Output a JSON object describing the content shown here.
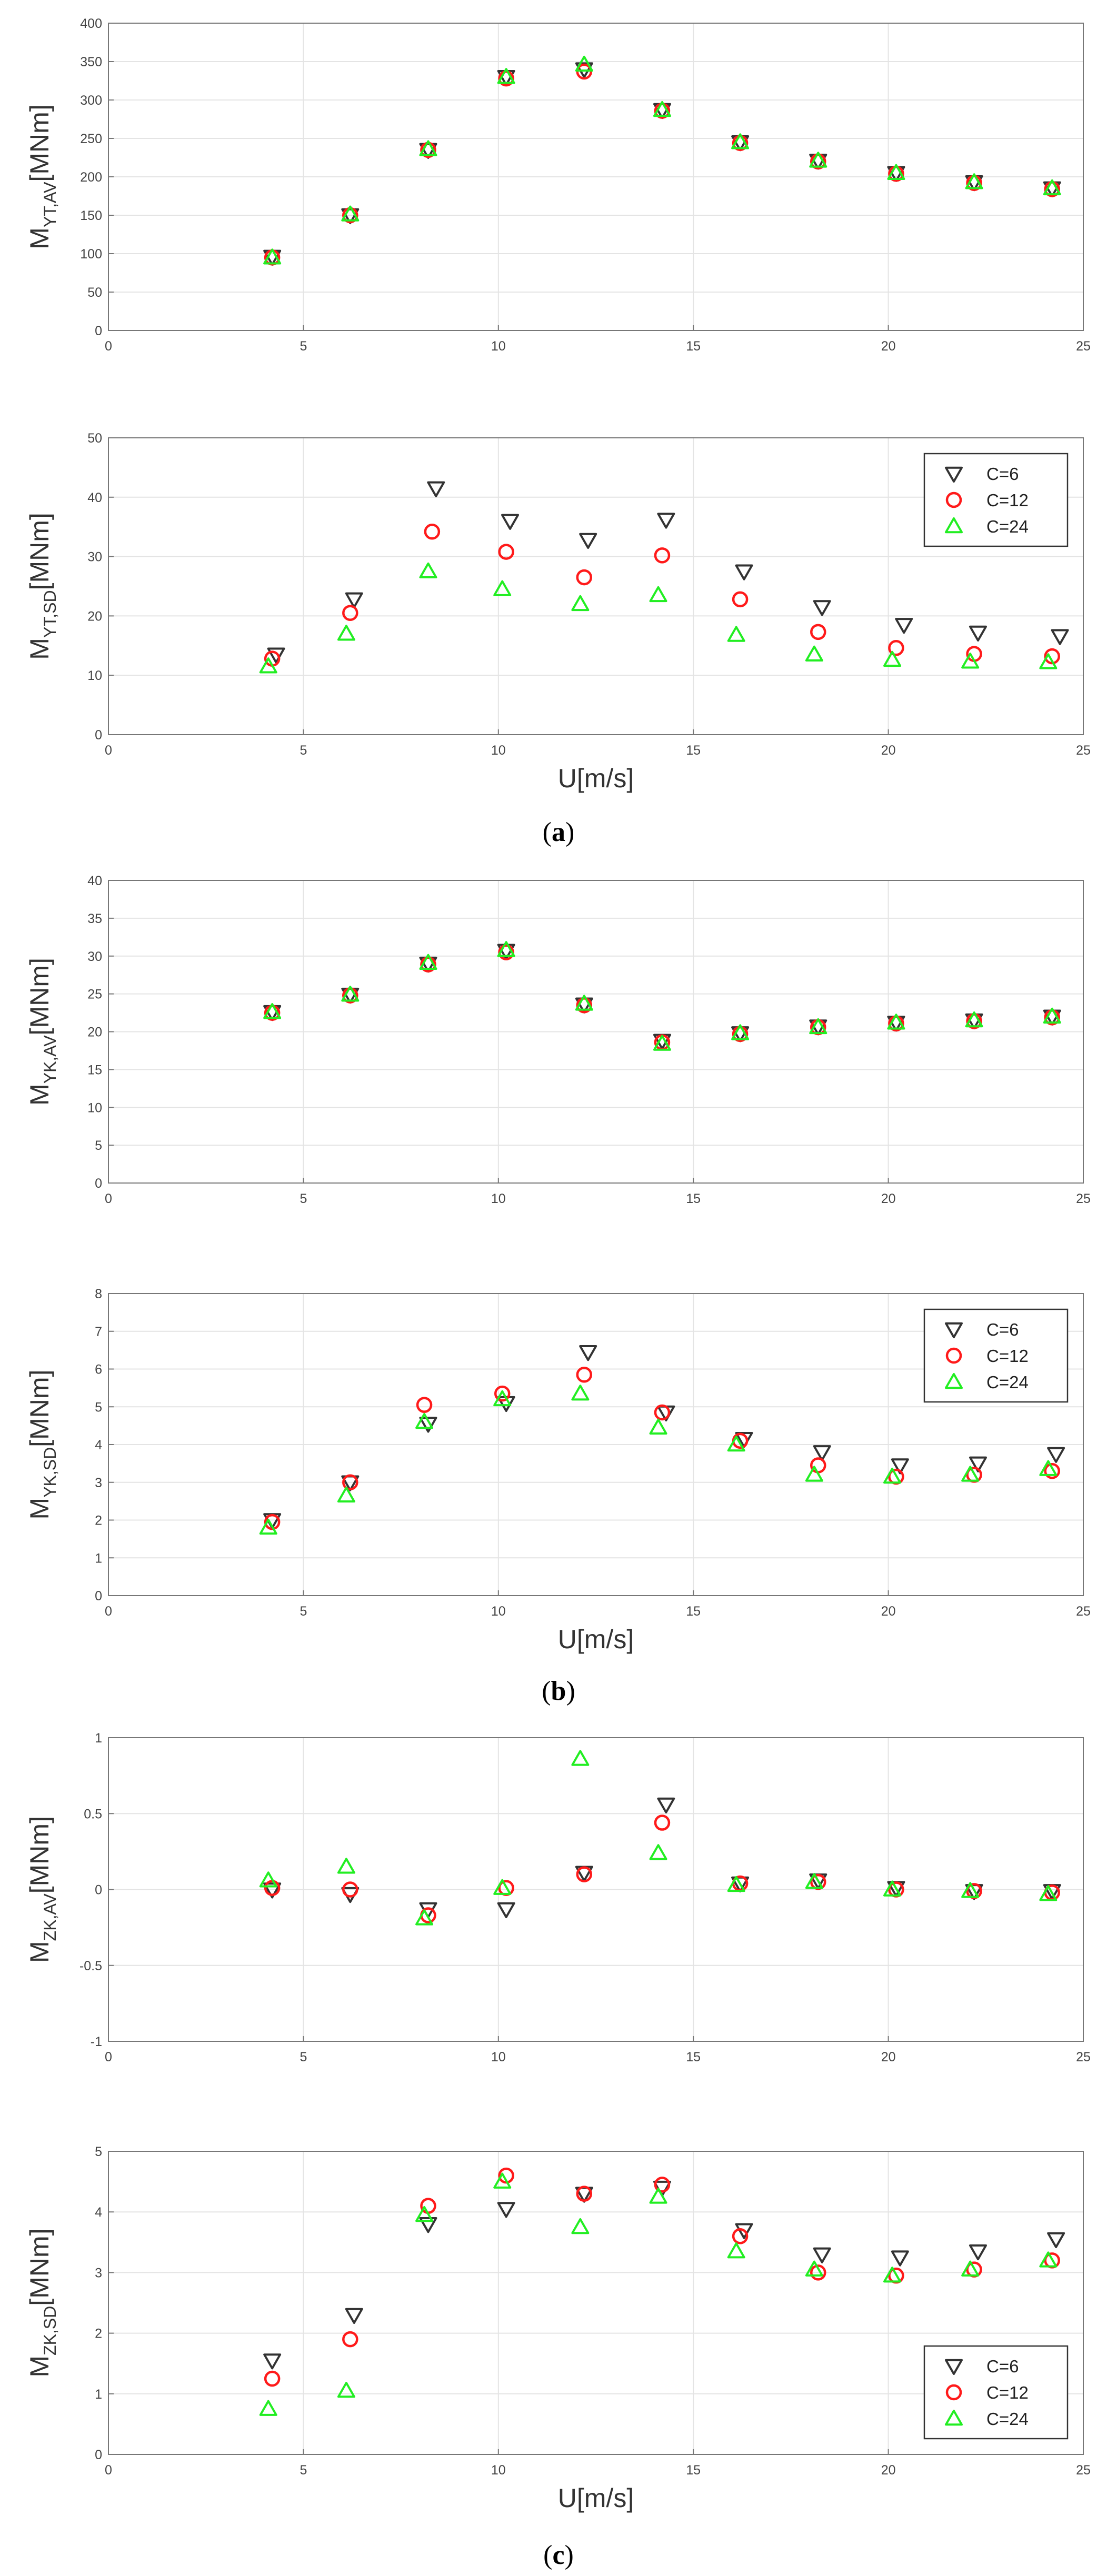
{
  "figure": {
    "captions": {
      "a": {
        "open": "(",
        "letter": "a",
        "close": ")"
      },
      "b": {
        "open": "(",
        "letter": "b",
        "close": ")"
      },
      "c": {
        "open": "(",
        "letter": "c",
        "close": ")"
      }
    }
  },
  "colors": {
    "C6": "#333333",
    "C12": "#ff1a1a",
    "C24": "#22ee22",
    "grid": "#e4e4e4",
    "axis": "#777777"
  },
  "chart_data": [
    {
      "id": "MYT_AV",
      "type": "scatter",
      "ylabel": {
        "main": "M",
        "sub": "YT,AV",
        "unit": "[MNm]"
      },
      "xlabel": "",
      "xlim": [
        0,
        25
      ],
      "ylim": [
        0,
        400
      ],
      "xticks": [
        0,
        5,
        10,
        15,
        20,
        25
      ],
      "yticks": [
        0,
        50,
        100,
        150,
        200,
        250,
        300,
        350,
        400
      ],
      "grid": true,
      "legend": null,
      "series": [
        {
          "name": "C=6",
          "marker": "triangle-down",
          "color": "#333333",
          "x": [
            4.2,
            6.2,
            8.2,
            10.2,
            12.2,
            14.2,
            16.2,
            18.2,
            20.2,
            22.2,
            24.2
          ],
          "y": [
            96,
            150,
            235,
            330,
            340,
            287,
            245,
            221,
            205,
            193,
            185
          ]
        },
        {
          "name": "C=12",
          "marker": "circle",
          "color": "#ff1a1a",
          "x": [
            4.2,
            6.2,
            8.2,
            10.2,
            12.2,
            14.2,
            16.2,
            18.2,
            20.2,
            22.2,
            24.2
          ],
          "y": [
            95,
            150,
            235,
            328,
            337,
            286,
            244,
            220,
            204,
            192,
            184
          ]
        },
        {
          "name": "C=24",
          "marker": "triangle-up",
          "color": "#22ee22",
          "x": [
            4.2,
            6.2,
            8.2,
            10.2,
            12.2,
            14.2,
            16.2,
            18.2,
            20.2,
            22.2,
            24.2
          ],
          "y": [
            95,
            151,
            236,
            330,
            346,
            287,
            245,
            221,
            205,
            193,
            185
          ]
        }
      ]
    },
    {
      "id": "MYT_SD",
      "type": "scatter",
      "ylabel": {
        "main": "M",
        "sub": "YT,SD",
        "unit": "[MNm]"
      },
      "xlabel": "U[m/s]",
      "xlim": [
        0,
        25
      ],
      "ylim": [
        0,
        50
      ],
      "xticks": [
        0,
        5,
        10,
        15,
        20,
        25
      ],
      "yticks": [
        0,
        10,
        20,
        30,
        40,
        50
      ],
      "grid": true,
      "legend": "top-right",
      "series": [
        {
          "name": "C=6",
          "marker": "triangle-down",
          "color": "#333333",
          "x": [
            4.3,
            6.3,
            8.4,
            10.3,
            12.3,
            14.3,
            16.3,
            18.3,
            20.4,
            22.3,
            24.4
          ],
          "y": [
            13.5,
            22.8,
            41.5,
            36,
            32.8,
            36.2,
            27.5,
            21.5,
            18.5,
            17.2,
            16.6
          ]
        },
        {
          "name": "C=12",
          "marker": "circle",
          "color": "#ff1a1a",
          "x": [
            4.2,
            6.2,
            8.3,
            10.2,
            12.2,
            14.2,
            16.2,
            18.2,
            20.2,
            22.2,
            24.2
          ],
          "y": [
            12.8,
            20.5,
            34.2,
            30.8,
            26.5,
            30.2,
            22.8,
            17.3,
            14.6,
            13.6,
            13.2
          ]
        },
        {
          "name": "C=24",
          "marker": "triangle-up",
          "color": "#22ee22",
          "x": [
            4.1,
            6.1,
            8.2,
            10.1,
            12.1,
            14.1,
            16.1,
            18.1,
            20.1,
            22.1,
            24.1
          ],
          "y": [
            11.5,
            17,
            27.5,
            24.5,
            22,
            23.5,
            16.8,
            13.5,
            12.6,
            12.3,
            12.2
          ]
        }
      ]
    },
    {
      "id": "MYK_AV",
      "type": "scatter",
      "ylabel": {
        "main": "M",
        "sub": "YK,AV",
        "unit": "[MNm]"
      },
      "xlabel": "",
      "xlim": [
        0,
        25
      ],
      "ylim": [
        0,
        40
      ],
      "xticks": [
        0,
        5,
        10,
        15,
        20,
        25
      ],
      "yticks": [
        0,
        5,
        10,
        15,
        20,
        25,
        30,
        35,
        40
      ],
      "grid": true,
      "legend": null,
      "series": [
        {
          "name": "C=6",
          "marker": "triangle-down",
          "color": "#333333",
          "x": [
            4.2,
            6.2,
            8.2,
            10.2,
            12.2,
            14.2,
            16.2,
            18.2,
            20.2,
            22.2,
            24.2
          ],
          "y": [
            22.6,
            24.9,
            29,
            30.7,
            23.6,
            18.8,
            19.8,
            20.7,
            21.2,
            21.5,
            22
          ]
        },
        {
          "name": "C=12",
          "marker": "circle",
          "color": "#ff1a1a",
          "x": [
            4.2,
            6.2,
            8.2,
            10.2,
            12.2,
            14.2,
            16.2,
            18.2,
            20.2,
            22.2,
            24.2
          ],
          "y": [
            22.5,
            24.8,
            28.9,
            30.5,
            23.5,
            18.6,
            19.7,
            20.6,
            21.1,
            21.4,
            21.9
          ]
        },
        {
          "name": "C=24",
          "marker": "triangle-up",
          "color": "#22ee22",
          "x": [
            4.2,
            6.2,
            8.2,
            10.2,
            12.2,
            14.2,
            16.2,
            18.2,
            20.2,
            22.2,
            24.2
          ],
          "y": [
            22.6,
            24.9,
            29.1,
            30.8,
            23.7,
            18.4,
            19.8,
            20.6,
            21.2,
            21.5,
            22
          ]
        }
      ]
    },
    {
      "id": "MYK_SD",
      "type": "scatter",
      "ylabel": {
        "main": "M",
        "sub": "YK,SD",
        "unit": "[MNm]"
      },
      "xlabel": "U[m/s]",
      "xlim": [
        0,
        25
      ],
      "ylim": [
        0,
        8
      ],
      "xticks": [
        0,
        5,
        10,
        15,
        20,
        25
      ],
      "yticks": [
        0,
        1,
        2,
        3,
        4,
        5,
        6,
        7,
        8
      ],
      "grid": true,
      "legend": "top-right",
      "series": [
        {
          "name": "C=6",
          "marker": "triangle-down",
          "color": "#333333",
          "x": [
            4.2,
            6.2,
            8.2,
            10.2,
            12.3,
            14.3,
            16.3,
            18.3,
            20.3,
            22.3,
            24.3
          ],
          "y": [
            2,
            3,
            4.55,
            5.1,
            6.45,
            4.85,
            4.15,
            3.8,
            3.45,
            3.5,
            3.75
          ]
        },
        {
          "name": "C=12",
          "marker": "circle",
          "color": "#ff1a1a",
          "x": [
            4.2,
            6.2,
            8.1,
            10.1,
            12.2,
            14.2,
            16.2,
            18.2,
            20.2,
            22.2,
            24.2
          ],
          "y": [
            1.95,
            3,
            5.05,
            5.35,
            5.85,
            4.85,
            4.1,
            3.45,
            3.15,
            3.2,
            3.3
          ]
        },
        {
          "name": "C=24",
          "marker": "triangle-up",
          "color": "#22ee22",
          "x": [
            4.1,
            6.1,
            8.1,
            10.1,
            12.1,
            14.1,
            16.1,
            18.1,
            20.1,
            22.1,
            24.1
          ],
          "y": [
            1.8,
            2.65,
            4.6,
            5.2,
            5.35,
            4.45,
            4,
            3.2,
            3.15,
            3.2,
            3.35
          ]
        }
      ]
    },
    {
      "id": "MZK_AV",
      "type": "scatter",
      "ylabel": {
        "main": "M",
        "sub": "ZK,AV",
        "unit": "[MNm]"
      },
      "xlabel": "",
      "xlim": [
        0,
        25
      ],
      "ylim": [
        -1,
        1
      ],
      "xticks": [
        0,
        5,
        10,
        15,
        20,
        25
      ],
      "yticks": [
        -1,
        -0.5,
        0,
        0.5,
        1
      ],
      "grid": true,
      "legend": null,
      "series": [
        {
          "name": "C=6",
          "marker": "triangle-down",
          "color": "#333333",
          "x": [
            4.2,
            6.2,
            8.2,
            10.2,
            12.2,
            14.3,
            16.2,
            18.2,
            20.2,
            22.2,
            24.2
          ],
          "y": [
            0,
            -0.03,
            -0.13,
            -0.13,
            0.11,
            0.56,
            0.04,
            0.06,
            0.01,
            -0.01,
            -0.01
          ]
        },
        {
          "name": "C=12",
          "marker": "circle",
          "color": "#ff1a1a",
          "x": [
            4.2,
            6.2,
            8.2,
            10.2,
            12.2,
            14.2,
            16.2,
            18.2,
            20.2,
            22.2,
            24.2
          ],
          "y": [
            0.01,
            0,
            -0.17,
            0.01,
            0.1,
            0.44,
            0.04,
            0.05,
            0,
            -0.01,
            -0.02
          ]
        },
        {
          "name": "C=24",
          "marker": "triangle-up",
          "color": "#22ee22",
          "x": [
            4.1,
            6.1,
            8.1,
            10.1,
            12.1,
            14.1,
            16.1,
            18.1,
            20.1,
            22.1,
            24.1
          ],
          "y": [
            0.06,
            0.15,
            -0.19,
            0.01,
            0.86,
            0.24,
            0.03,
            0.05,
            0,
            -0.01,
            -0.03
          ]
        }
      ]
    },
    {
      "id": "MZK_SD",
      "type": "scatter",
      "ylabel": {
        "main": "M",
        "sub": "ZK,SD",
        "unit": "[MNm]"
      },
      "xlabel": "U[m/s]",
      "xlim": [
        0,
        25
      ],
      "ylim": [
        0,
        5
      ],
      "xticks": [
        0,
        5,
        10,
        15,
        20,
        25
      ],
      "yticks": [
        0,
        1,
        2,
        3,
        4,
        5
      ],
      "grid": true,
      "legend": "bottom-right",
      "series": [
        {
          "name": "C=6",
          "marker": "triangle-down",
          "color": "#333333",
          "x": [
            4.2,
            6.3,
            8.2,
            10.2,
            12.2,
            14.2,
            16.3,
            18.3,
            20.3,
            22.3,
            24.3
          ],
          "y": [
            1.55,
            2.3,
            3.8,
            4.05,
            4.3,
            4.4,
            3.7,
            3.3,
            3.25,
            3.35,
            3.55
          ]
        },
        {
          "name": "C=12",
          "marker": "circle",
          "color": "#ff1a1a",
          "x": [
            4.2,
            6.2,
            8.2,
            10.2,
            12.2,
            14.2,
            16.2,
            18.2,
            20.2,
            22.2,
            24.2
          ],
          "y": [
            1.25,
            1.9,
            4.1,
            4.6,
            4.3,
            4.45,
            3.6,
            3,
            2.95,
            3.05,
            3.2
          ]
        },
        {
          "name": "C=24",
          "marker": "triangle-up",
          "color": "#22ee22",
          "x": [
            4.1,
            6.1,
            8.1,
            10.1,
            12.1,
            14.1,
            16.1,
            18.1,
            20.1,
            22.1,
            24.1
          ],
          "y": [
            0.75,
            1.05,
            3.95,
            4.5,
            3.75,
            4.25,
            3.35,
            3.05,
            2.95,
            3.05,
            3.2
          ]
        }
      ]
    }
  ]
}
